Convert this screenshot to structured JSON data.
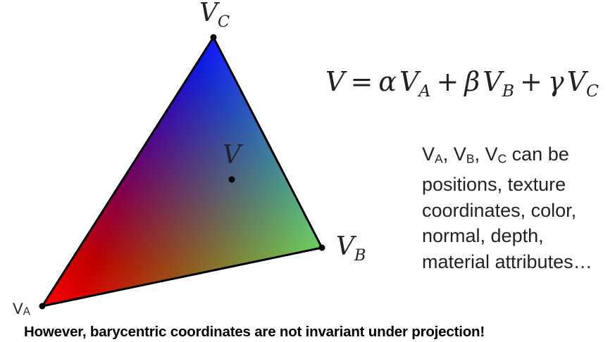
{
  "diagram": {
    "vertices": {
      "a": {
        "label": "V",
        "sub": "A",
        "color": "#ff0000"
      },
      "b": {
        "label": "V",
        "sub": "B",
        "color": "#6bd13a"
      },
      "c": {
        "label": "V",
        "sub": "C",
        "color": "#0000ff"
      }
    },
    "interior_point": {
      "label": "V"
    },
    "formula": {
      "lhs": "V",
      "eq": "=",
      "alpha": "α",
      "beta": "β",
      "gamma": "γ",
      "v": "V",
      "sub_a": "A",
      "sub_b": "B",
      "sub_c": "C",
      "plus": "+"
    },
    "description": {
      "v": "V",
      "sub_a": "A",
      "sub_b": "B",
      "sub_c": "C",
      "sep": ", ",
      "line1_tail": " can be",
      "line2": "positions, texture",
      "line3": "coordinates, color,",
      "line4": "normal, depth,",
      "line5": "material attributes…"
    },
    "caption": "However, barycentric coordinates are not invariant under projection!"
  }
}
